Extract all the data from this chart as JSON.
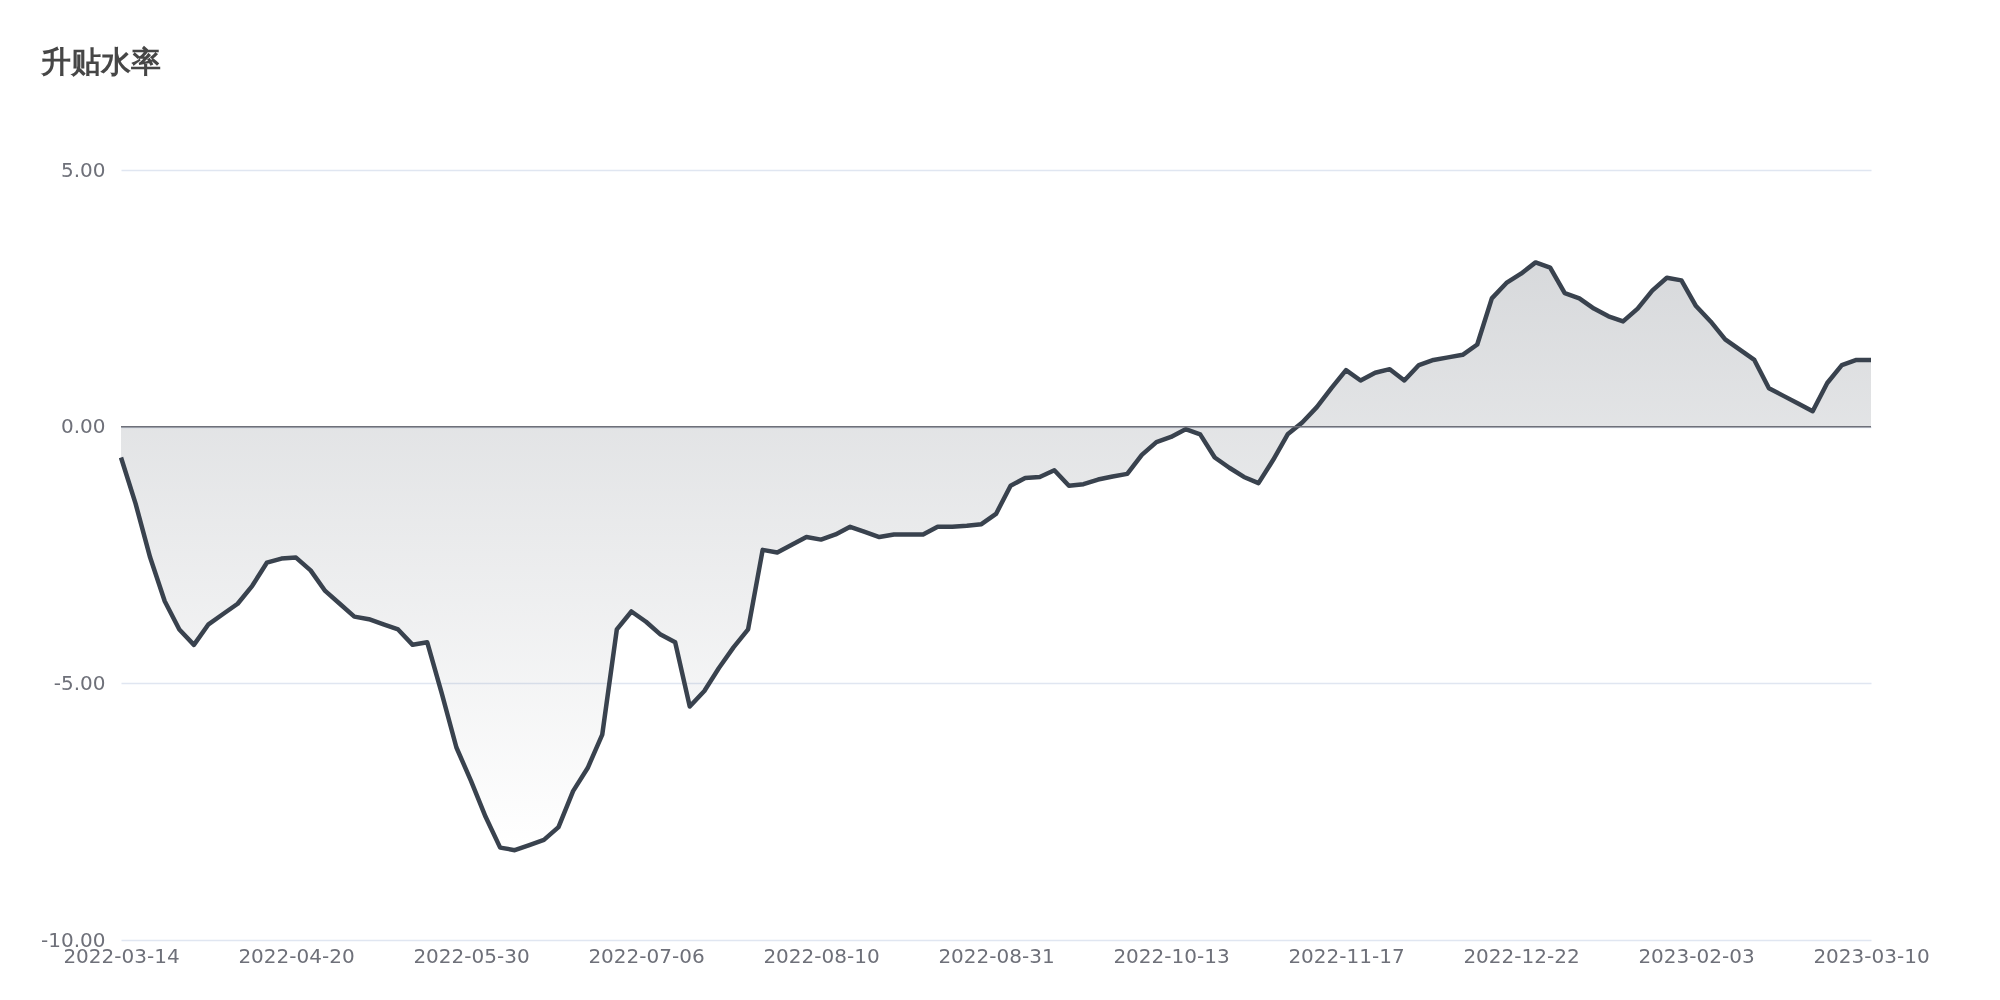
{
  "chart_data": {
    "type": "area",
    "title": "升贴水率",
    "categories": [
      "2022-03-14",
      null,
      null,
      null,
      null,
      null,
      null,
      null,
      null,
      null,
      null,
      null,
      "2022-04-20",
      null,
      null,
      null,
      null,
      null,
      null,
      null,
      null,
      null,
      null,
      null,
      "2022-05-30",
      null,
      null,
      null,
      null,
      null,
      null,
      null,
      null,
      null,
      null,
      null,
      "2022-07-06",
      null,
      null,
      null,
      null,
      null,
      null,
      null,
      null,
      null,
      null,
      null,
      "2022-08-10",
      null,
      null,
      null,
      null,
      null,
      null,
      null,
      null,
      null,
      null,
      null,
      "2022-08-31",
      null,
      null,
      null,
      null,
      null,
      null,
      null,
      null,
      null,
      null,
      null,
      "2022-10-13",
      null,
      null,
      null,
      null,
      null,
      null,
      null,
      null,
      null,
      null,
      null,
      "2022-11-17",
      null,
      null,
      null,
      null,
      null,
      null,
      null,
      null,
      null,
      null,
      null,
      "2022-12-22",
      null,
      null,
      null,
      null,
      null,
      null,
      null,
      null,
      null,
      null,
      null,
      "2023-02-03",
      null,
      null,
      null,
      null,
      null,
      null,
      null,
      null,
      null,
      null,
      null,
      "2023-03-10"
    ],
    "series": [
      {
        "color": "#39424e",
        "values": [
          -0.6,
          -1.5,
          -2.55,
          -3.4,
          -3.95,
          -4.25,
          -3.85,
          -3.65,
          -3.45,
          -3.1,
          -2.65,
          -2.57,
          -2.55,
          -2.8,
          -3.2,
          -3.45,
          -3.7,
          -3.75,
          -3.85,
          -3.95,
          -4.25,
          -4.2,
          -5.2,
          -6.25,
          -6.9,
          -7.6,
          -8.2,
          -8.25,
          -8.15,
          -8.05,
          -7.8,
          -7.1,
          -6.65,
          -6.0,
          -3.95,
          -3.6,
          -3.8,
          -4.05,
          -4.2,
          -5.45,
          -5.15,
          -4.7,
          -4.3,
          -3.95,
          -2.4,
          -2.45,
          -2.3,
          -2.15,
          -2.2,
          -2.1,
          -1.95,
          -2.05,
          -2.15,
          -2.1,
          -2.1,
          -2.1,
          -1.95,
          -1.95,
          -1.93,
          -1.9,
          -1.7,
          -1.15,
          -1.0,
          -0.98,
          -0.85,
          -1.15,
          -1.12,
          -1.03,
          -0.97,
          -0.92,
          -0.55,
          -0.3,
          -0.2,
          -0.05,
          -0.15,
          -0.6,
          -0.8,
          -0.98,
          -1.1,
          -0.65,
          -0.15,
          0.08,
          0.38,
          0.75,
          1.1,
          0.9,
          1.05,
          1.12,
          0.9,
          1.2,
          1.3,
          1.35,
          1.4,
          1.6,
          2.5,
          2.8,
          2.98,
          3.2,
          3.1,
          2.6,
          2.5,
          2.3,
          2.15,
          2.05,
          2.3,
          2.65,
          2.9,
          2.85,
          2.35,
          2.05,
          1.7,
          1.5,
          1.3,
          0.75,
          0.6,
          0.45,
          0.3,
          0.85,
          1.2,
          1.3,
          1.3
        ]
      }
    ],
    "ylim": [
      -10,
      5
    ],
    "yticks": [
      {
        "value": -10,
        "label": "-10.00"
      },
      {
        "value": -5,
        "label": "-5.00"
      },
      {
        "value": 0,
        "label": "0.00"
      },
      {
        "value": 5,
        "label": "5.00"
      }
    ],
    "grid": "y",
    "ref_lines": [
      {
        "axis": "y",
        "value": 0,
        "color": "#6e7079"
      }
    ],
    "marker": "none",
    "line_style": "solid"
  }
}
